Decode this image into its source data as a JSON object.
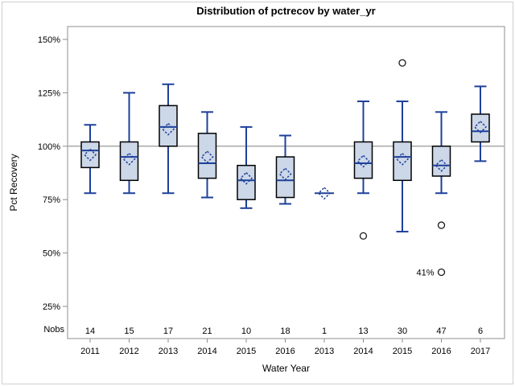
{
  "chart_data": {
    "type": "box",
    "title": "Distribution of pctrecov by water_yr",
    "xlabel": "Water Year",
    "ylabel": "Pct Recovery",
    "nobs_label": "Nobs",
    "grid": "off",
    "legend": "none",
    "reference_line": 100,
    "y_tick_values": [
      150,
      125,
      100,
      75,
      50,
      25
    ],
    "y_tick_labels": [
      "150%",
      "125%",
      "100%",
      "75%",
      "50%",
      "25%"
    ],
    "ylim": [
      10,
      156
    ],
    "categories": [
      "2011",
      "2012",
      "2013",
      "2014",
      "2015",
      "2016",
      "2013",
      "2014",
      "2015",
      "2016",
      "2017"
    ],
    "nobs": [
      14,
      15,
      17,
      21,
      10,
      18,
      1,
      13,
      30,
      47,
      6
    ],
    "groups": [
      {
        "year": "2011",
        "nobs": 14,
        "low": 78,
        "q1": 90,
        "median": 98,
        "q3": 102,
        "high": 110,
        "mean": 96,
        "outliers": []
      },
      {
        "year": "2012",
        "nobs": 15,
        "low": 78,
        "q1": 84,
        "median": 95,
        "q3": 102,
        "high": 125,
        "mean": 94,
        "outliers": []
      },
      {
        "year": "2013",
        "nobs": 17,
        "low": 78,
        "q1": 100,
        "median": 109,
        "q3": 119,
        "high": 129,
        "mean": 108,
        "outliers": []
      },
      {
        "year": "2014",
        "nobs": 21,
        "low": 76,
        "q1": 85,
        "median": 92,
        "q3": 106,
        "high": 116,
        "mean": 95,
        "outliers": []
      },
      {
        "year": "2015",
        "nobs": 10,
        "low": 71,
        "q1": 75,
        "median": 84,
        "q3": 91,
        "high": 109,
        "mean": 85,
        "outliers": []
      },
      {
        "year": "2016",
        "nobs": 18,
        "low": 73,
        "q1": 76,
        "median": 84,
        "q3": 95,
        "high": 105,
        "mean": 87,
        "outliers": []
      },
      {
        "year": "2013",
        "nobs": 1,
        "single": true,
        "low": 78,
        "q1": 78,
        "median": 78,
        "q3": 78,
        "high": 78,
        "mean": 78,
        "outliers": []
      },
      {
        "year": "2014",
        "nobs": 13,
        "low": 78,
        "q1": 85,
        "median": 92,
        "q3": 102,
        "high": 121,
        "mean": 93,
        "outliers": [
          {
            "value": 58
          }
        ]
      },
      {
        "year": "2015",
        "nobs": 30,
        "low": 60,
        "q1": 84,
        "median": 95,
        "q3": 102,
        "high": 121,
        "mean": 94,
        "outliers": [
          {
            "value": 139
          }
        ]
      },
      {
        "year": "2016",
        "nobs": 47,
        "low": 78,
        "q1": 86,
        "median": 91,
        "q3": 100,
        "high": 116,
        "mean": 91,
        "outliers": [
          {
            "value": 63
          },
          {
            "value": 41,
            "label": "41%"
          }
        ]
      },
      {
        "year": "2017",
        "nobs": 6,
        "low": 93,
        "q1": 102,
        "median": 107,
        "q3": 115,
        "high": 128,
        "mean": 109,
        "outliers": []
      }
    ],
    "colors": {
      "box_fill": "#ccd7e8",
      "box_border": "#000000",
      "whisker": "#1e409a",
      "reference_line": "#a8a8a8",
      "frame": "#8f8f8f",
      "outer_border": "#cfcfcf",
      "outlier": "#1a1a1a"
    }
  }
}
